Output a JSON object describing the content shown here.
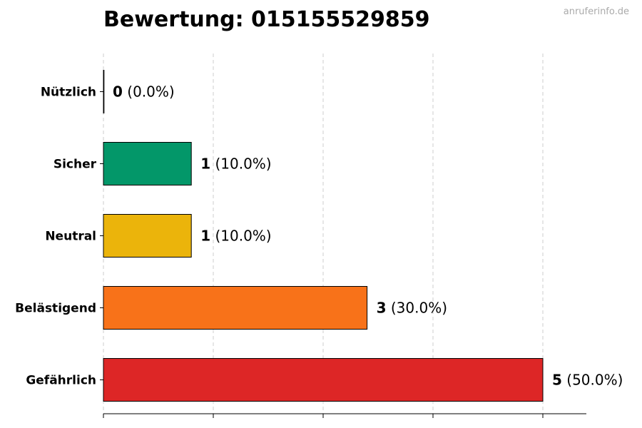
{
  "title": "Bewertung: 015155529859",
  "watermark": "anruferinfo.de",
  "chart_data": {
    "type": "bar",
    "orientation": "horizontal",
    "categories": [
      "Nützlich",
      "Sicher",
      "Neutral",
      "Belästigend",
      "Gefährlich"
    ],
    "values": [
      0,
      1,
      1,
      3,
      5
    ],
    "percent_labels": [
      "(0.0%)",
      "(10.0%)",
      "(10.0%)",
      "(30.0%)",
      "(50.0%)"
    ],
    "colors": [
      "#2ecc71",
      "#039769",
      "#ebb40b",
      "#f87219",
      "#dd2626"
    ],
    "xlim": [
      0,
      5.5
    ],
    "grid": true
  }
}
